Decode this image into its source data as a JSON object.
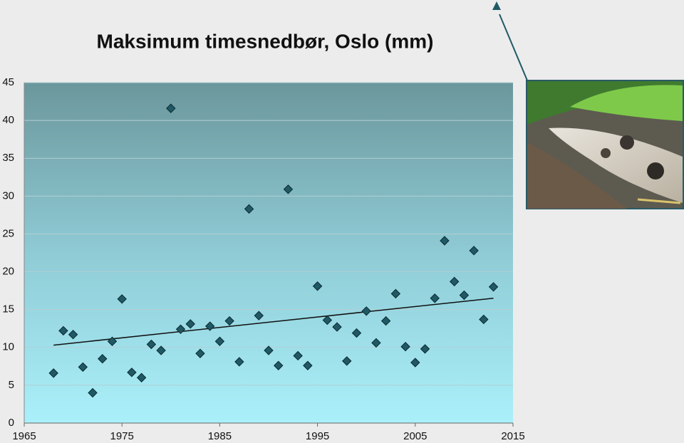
{
  "chart_data": {
    "type": "scatter",
    "title": "Maksimum timesnedbør, Oslo (mm)",
    "x": [
      1968,
      1969,
      1970,
      1971,
      1972,
      1973,
      1974,
      1975,
      1976,
      1977,
      1978,
      1979,
      1980,
      1981,
      1982,
      1983,
      1984,
      1985,
      1986,
      1987,
      1988,
      1989,
      1990,
      1991,
      1992,
      1993,
      1994,
      1995,
      1996,
      1997,
      1998,
      1999,
      2000,
      2001,
      2002,
      2003,
      2004,
      2005,
      2006,
      2007,
      2008,
      2009,
      2010,
      2011,
      2012,
      2013
    ],
    "values": [
      6.6,
      12.2,
      11.7,
      7.4,
      4.0,
      8.5,
      10.8,
      16.4,
      6.7,
      6.0,
      10.4,
      9.6,
      41.6,
      12.4,
      13.1,
      9.2,
      12.8,
      10.8,
      13.5,
      8.1,
      28.3,
      14.2,
      9.6,
      7.6,
      30.9,
      8.9,
      7.6,
      18.1,
      13.6,
      12.7,
      8.2,
      11.9,
      14.8,
      10.6,
      13.5,
      17.1,
      10.1,
      8.0,
      9.8,
      16.5,
      24.1,
      18.7,
      16.9,
      22.8,
      13.7,
      18.0
    ],
    "color": "#1f5965",
    "trendline": {
      "x": [
        1968,
        2013
      ],
      "values": [
        10.3,
        16.5
      ],
      "color": "#111111"
    },
    "xlim": [
      1965,
      2015
    ],
    "xticks": [
      1965,
      1975,
      1985,
      1995,
      2005,
      2015
    ],
    "ylim": [
      0,
      45
    ],
    "yticks": [
      0,
      5,
      10,
      15,
      20,
      25,
      30,
      35,
      40,
      45
    ],
    "grid": true
  }
}
